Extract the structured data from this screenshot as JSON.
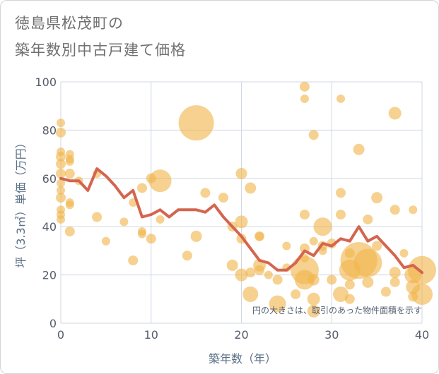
{
  "header": {
    "title_line1": "徳島県松茂町の",
    "title_line2": "築年数別中古戸建て価格"
  },
  "chart_data": {
    "type": "scatter",
    "title": "徳島県松茂町の築年数別中古戸建て価格",
    "xlabel": "築年数（年）",
    "ylabel": "坪（3.3㎡）単価（万円）",
    "xlim": [
      0,
      40
    ],
    "ylim": [
      0,
      100
    ],
    "x_ticks": [
      0,
      10,
      20,
      30,
      40
    ],
    "y_ticks": [
      0,
      20,
      40,
      60,
      80,
      100
    ],
    "grid": true,
    "note": "円の大きさは、取引のあった物件面積を示す",
    "colors": {
      "bubble": "#f1b44c",
      "line": "#d4654f",
      "grid": "#d0d8e2"
    },
    "bubbles": [
      {
        "x": 0,
        "y": 83,
        "r": 6
      },
      {
        "x": 0,
        "y": 79,
        "r": 7
      },
      {
        "x": 0,
        "y": 71,
        "r": 6
      },
      {
        "x": 0,
        "y": 69,
        "r": 7
      },
      {
        "x": 0,
        "y": 66,
        "r": 7
      },
      {
        "x": 0,
        "y": 62,
        "r": 7
      },
      {
        "x": 0,
        "y": 58,
        "r": 6
      },
      {
        "x": 0,
        "y": 55,
        "r": 6
      },
      {
        "x": 0,
        "y": 52,
        "r": 7
      },
      {
        "x": 0,
        "y": 47,
        "r": 6
      },
      {
        "x": 0,
        "y": 45,
        "r": 6
      },
      {
        "x": 0,
        "y": 43,
        "r": 6
      },
      {
        "x": 1,
        "y": 70,
        "r": 6
      },
      {
        "x": 1,
        "y": 68,
        "r": 6
      },
      {
        "x": 1,
        "y": 67,
        "r": 6
      },
      {
        "x": 1,
        "y": 62,
        "r": 7
      },
      {
        "x": 1,
        "y": 50,
        "r": 6
      },
      {
        "x": 1,
        "y": 49,
        "r": 6
      },
      {
        "x": 1,
        "y": 38,
        "r": 7
      },
      {
        "x": 2,
        "y": 59,
        "r": 6
      },
      {
        "x": 4,
        "y": 62,
        "r": 6
      },
      {
        "x": 4,
        "y": 44,
        "r": 7
      },
      {
        "x": 5,
        "y": 34,
        "r": 6
      },
      {
        "x": 7,
        "y": 42,
        "r": 6
      },
      {
        "x": 8,
        "y": 50,
        "r": 6
      },
      {
        "x": 8,
        "y": 26,
        "r": 7
      },
      {
        "x": 9,
        "y": 56,
        "r": 7
      },
      {
        "x": 9,
        "y": 38,
        "r": 6
      },
      {
        "x": 9,
        "y": 37,
        "r": 6
      },
      {
        "x": 10,
        "y": 60,
        "r": 7
      },
      {
        "x": 10,
        "y": 35,
        "r": 7
      },
      {
        "x": 11,
        "y": 59,
        "r": 16
      },
      {
        "x": 11,
        "y": 43,
        "r": 6
      },
      {
        "x": 14,
        "y": 28,
        "r": 7
      },
      {
        "x": 15,
        "y": 83,
        "r": 25
      },
      {
        "x": 15,
        "y": 36,
        "r": 8
      },
      {
        "x": 16,
        "y": 54,
        "r": 7
      },
      {
        "x": 18,
        "y": 52,
        "r": 7
      },
      {
        "x": 19,
        "y": 40,
        "r": 7
      },
      {
        "x": 19,
        "y": 24,
        "r": 8
      },
      {
        "x": 20,
        "y": 62,
        "r": 8
      },
      {
        "x": 20,
        "y": 42,
        "r": 9
      },
      {
        "x": 20,
        "y": 35,
        "r": 7
      },
      {
        "x": 20,
        "y": 20,
        "r": 9
      },
      {
        "x": 21,
        "y": 56,
        "r": 8
      },
      {
        "x": 21,
        "y": 21,
        "r": 7
      },
      {
        "x": 21,
        "y": 12,
        "r": 11
      },
      {
        "x": 22,
        "y": 36,
        "r": 7
      },
      {
        "x": 22,
        "y": 36,
        "r": 6
      },
      {
        "x": 22,
        "y": 24,
        "r": 9
      },
      {
        "x": 22,
        "y": 22,
        "r": 7
      },
      {
        "x": 23,
        "y": 20,
        "r": 6
      },
      {
        "x": 24,
        "y": 18,
        "r": 7
      },
      {
        "x": 24,
        "y": 8,
        "r": 12
      },
      {
        "x": 25,
        "y": 23,
        "r": 6
      },
      {
        "x": 25,
        "y": 32,
        "r": 6
      },
      {
        "x": 26,
        "y": 12,
        "r": 7
      },
      {
        "x": 27,
        "y": 98,
        "r": 7
      },
      {
        "x": 27,
        "y": 93,
        "r": 6
      },
      {
        "x": 27,
        "y": 45,
        "r": 7
      },
      {
        "x": 27,
        "y": 31,
        "r": 7
      },
      {
        "x": 27,
        "y": 27,
        "r": 6
      },
      {
        "x": 27,
        "y": 22,
        "r": 20
      },
      {
        "x": 27,
        "y": 18,
        "r": 14
      },
      {
        "x": 28,
        "y": 78,
        "r": 7
      },
      {
        "x": 28,
        "y": 34,
        "r": 6
      },
      {
        "x": 28,
        "y": 18,
        "r": 8
      },
      {
        "x": 28,
        "y": 10,
        "r": 9
      },
      {
        "x": 28,
        "y": 5,
        "r": 9
      },
      {
        "x": 29,
        "y": 40,
        "r": 13
      },
      {
        "x": 29,
        "y": 32,
        "r": 7
      },
      {
        "x": 29,
        "y": 30,
        "r": 6
      },
      {
        "x": 30,
        "y": 33,
        "r": 7
      },
      {
        "x": 30,
        "y": 18,
        "r": 7
      },
      {
        "x": 31,
        "y": 93,
        "r": 6
      },
      {
        "x": 31,
        "y": 54,
        "r": 7
      },
      {
        "x": 31,
        "y": 45,
        "r": 7
      },
      {
        "x": 31,
        "y": 12,
        "r": 11
      },
      {
        "x": 32,
        "y": 29,
        "r": 7
      },
      {
        "x": 32,
        "y": 22,
        "r": 15
      },
      {
        "x": 32,
        "y": 16,
        "r": 7
      },
      {
        "x": 32,
        "y": 10,
        "r": 7
      },
      {
        "x": 33,
        "y": 72,
        "r": 8
      },
      {
        "x": 33,
        "y": 26,
        "r": 26
      },
      {
        "x": 34,
        "y": 43,
        "r": 7
      },
      {
        "x": 34,
        "y": 25,
        "r": 20
      },
      {
        "x": 34,
        "y": 17,
        "r": 8
      },
      {
        "x": 35,
        "y": 52,
        "r": 8
      },
      {
        "x": 35,
        "y": 32,
        "r": 7
      },
      {
        "x": 36,
        "y": 13,
        "r": 7
      },
      {
        "x": 37,
        "y": 87,
        "r": 9
      },
      {
        "x": 37,
        "y": 47,
        "r": 7
      },
      {
        "x": 37,
        "y": 21,
        "r": 8
      },
      {
        "x": 37,
        "y": 17,
        "r": 7
      },
      {
        "x": 38,
        "y": 29,
        "r": 6
      },
      {
        "x": 39,
        "y": 47,
        "r": 6
      },
      {
        "x": 39,
        "y": 20,
        "r": 12
      },
      {
        "x": 39,
        "y": 15,
        "r": 10
      },
      {
        "x": 39,
        "y": 11,
        "r": 7
      },
      {
        "x": 40,
        "y": 22,
        "r": 20
      },
      {
        "x": 40,
        "y": 12,
        "r": 15
      }
    ],
    "line": {
      "x": [
        0,
        1,
        2,
        3,
        4,
        5,
        6,
        7,
        8,
        9,
        10,
        11,
        12,
        13,
        14,
        15,
        16,
        17,
        18,
        19,
        20,
        21,
        22,
        23,
        24,
        25,
        26,
        27,
        28,
        29,
        30,
        31,
        32,
        33,
        34,
        35,
        36,
        37,
        38,
        39,
        40
      ],
      "y": [
        60,
        59,
        59,
        55,
        64,
        61,
        57,
        52,
        55,
        44,
        45,
        47,
        44,
        47,
        47,
        47,
        46,
        49,
        44,
        40,
        36,
        31,
        26,
        25,
        22,
        22,
        25,
        30,
        28,
        33,
        32,
        35,
        34,
        40,
        34,
        36,
        32,
        28,
        23,
        24,
        21
      ]
    }
  }
}
